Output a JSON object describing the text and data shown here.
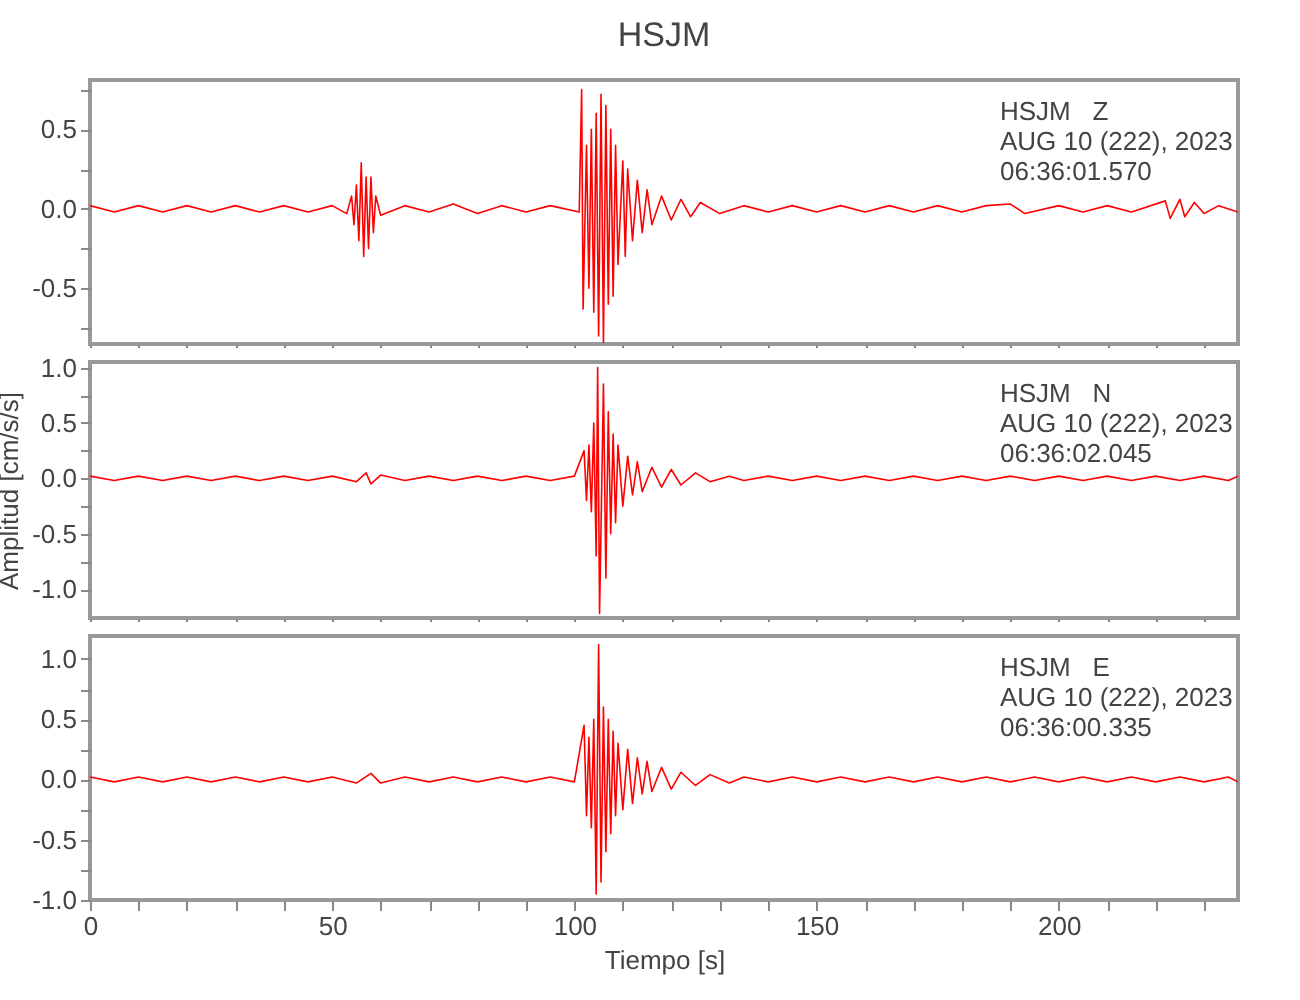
{
  "chart_data": [
    {
      "type": "line",
      "title": "HSJM",
      "tick_labels": "y",
      "annotations": [
        "HSJM   Z",
        "AUG 10 (222), 2023",
        "06:36:01.570"
      ],
      "x": [
        0,
        5,
        10,
        15,
        20,
        25,
        30,
        35,
        40,
        45,
        50,
        53,
        54,
        54.5,
        55,
        55.5,
        56,
        56.5,
        57,
        57.5,
        58,
        58.5,
        59,
        60,
        65,
        70,
        75,
        80,
        85,
        90,
        95,
        101,
        101.5,
        101.8,
        102.5,
        103,
        103.5,
        104,
        104.5,
        105,
        105.5,
        106,
        106.5,
        107,
        107.5,
        108,
        108.5,
        109,
        110,
        110.5,
        111,
        112,
        113,
        114,
        115,
        116,
        118,
        120,
        122,
        124,
        126,
        130,
        135,
        140,
        145,
        150,
        155,
        160,
        165,
        170,
        175,
        180,
        185,
        190,
        193,
        200,
        205,
        210,
        215,
        222,
        223,
        225,
        226,
        228,
        230,
        233,
        237
      ],
      "series": [
        {
          "color": "#ff0000",
          "values": [
            0.02,
            -0.02,
            0.02,
            -0.02,
            0.02,
            -0.02,
            0.02,
            -0.02,
            0.02,
            -0.02,
            0.02,
            -0.03,
            0.08,
            -0.1,
            0.15,
            -0.2,
            0.29,
            -0.3,
            0.2,
            -0.25,
            0.2,
            -0.15,
            0.08,
            -0.04,
            0.02,
            -0.02,
            0.03,
            -0.03,
            0.02,
            -0.02,
            0.02,
            -0.02,
            0.75,
            -0.63,
            0.4,
            -0.5,
            0.5,
            -0.65,
            0.6,
            -0.8,
            0.72,
            -0.84,
            0.65,
            -0.6,
            0.5,
            -0.55,
            0.4,
            -0.35,
            0.3,
            -0.3,
            0.25,
            -0.2,
            0.18,
            -0.15,
            0.12,
            -0.1,
            0.08,
            -0.07,
            0.06,
            -0.05,
            0.04,
            -0.03,
            0.02,
            -0.02,
            0.02,
            -0.02,
            0.02,
            -0.02,
            0.02,
            -0.02,
            0.02,
            -0.02,
            0.02,
            0.03,
            -0.03,
            0.02,
            -0.02,
            0.02,
            -0.02,
            0.05,
            -0.06,
            0.06,
            -0.05,
            0.04,
            -0.03,
            0.02,
            -0.02
          ]
        }
      ],
      "xlim": [
        0,
        237
      ],
      "ylim": [
        -0.85,
        0.81
      ],
      "xticks": [
        0,
        {
          "value": 10,
          "label": null
        },
        {
          "value": 20,
          "label": null
        },
        {
          "value": 30,
          "label": null
        },
        {
          "value": 40,
          "label": null
        },
        50,
        {
          "value": 60,
          "label": null
        },
        {
          "value": 70,
          "label": null
        },
        {
          "value": 80,
          "label": null
        },
        {
          "value": 90,
          "label": null
        },
        100,
        {
          "value": 110,
          "label": null
        },
        {
          "value": 120,
          "label": null
        },
        {
          "value": 130,
          "label": null
        },
        {
          "value": 140,
          "label": null
        },
        150,
        {
          "value": 160,
          "label": null
        },
        {
          "value": 170,
          "label": null
        },
        {
          "value": 180,
          "label": null
        },
        {
          "value": 190,
          "label": null
        },
        200,
        {
          "value": 210,
          "label": null
        },
        {
          "value": 220,
          "label": null
        },
        {
          "value": 230,
          "label": null
        }
      ],
      "yticks": [
        {
          "value": -0.75,
          "label": null
        },
        {
          "value": -0.5,
          "label": "-0.5"
        },
        {
          "value": -0.25,
          "label": null
        },
        {
          "value": 0,
          "label": "0.0"
        },
        {
          "value": 0.25,
          "label": null
        },
        {
          "value": 0.5,
          "label": "0.5"
        },
        {
          "value": 0.75,
          "label": null
        }
      ]
    },
    {
      "type": "line",
      "ylabel": "Amplitud [cm/s/s]",
      "tick_labels": "y",
      "annotations": [
        "HSJM   N",
        "AUG 10 (222), 2023",
        "06:36:02.045"
      ],
      "x": [
        0,
        5,
        10,
        15,
        20,
        25,
        30,
        35,
        40,
        45,
        50,
        55,
        57,
        58,
        60,
        65,
        70,
        75,
        80,
        85,
        90,
        95,
        100,
        102,
        102.5,
        103,
        103.5,
        104,
        104.5,
        104.8,
        105.2,
        106,
        106.5,
        107,
        107.5,
        108,
        108.5,
        109,
        110,
        111,
        112,
        113,
        114,
        116,
        118,
        120,
        122,
        125,
        128,
        132,
        135,
        140,
        145,
        150,
        155,
        160,
        165,
        170,
        175,
        180,
        185,
        190,
        195,
        200,
        205,
        210,
        215,
        220,
        225,
        230,
        235,
        237
      ],
      "series": [
        {
          "color": "#ff0000",
          "values": [
            0.02,
            -0.02,
            0.02,
            -0.02,
            0.02,
            -0.02,
            0.02,
            -0.02,
            0.02,
            -0.02,
            0.02,
            -0.03,
            0.05,
            -0.05,
            0.03,
            -0.02,
            0.02,
            -0.02,
            0.02,
            -0.02,
            0.02,
            -0.02,
            0.02,
            0.25,
            -0.2,
            0.3,
            -0.3,
            0.5,
            -0.7,
            1.0,
            -1.22,
            0.85,
            -0.9,
            0.6,
            -0.5,
            0.4,
            -0.4,
            0.3,
            -0.25,
            0.2,
            -0.15,
            0.15,
            -0.12,
            0.1,
            -0.08,
            0.08,
            -0.06,
            0.05,
            -0.03,
            0.02,
            -0.02,
            0.02,
            -0.02,
            0.02,
            -0.02,
            0.02,
            -0.02,
            0.02,
            -0.02,
            0.02,
            -0.02,
            0.02,
            -0.02,
            0.02,
            -0.02,
            0.02,
            -0.02,
            0.02,
            -0.02,
            0.02,
            -0.02,
            0.02
          ]
        }
      ],
      "xlim": [
        0,
        237
      ],
      "ylim": [
        -1.26,
        1.05
      ],
      "xticks": [
        0,
        {
          "value": 10,
          "label": null
        },
        {
          "value": 20,
          "label": null
        },
        {
          "value": 30,
          "label": null
        },
        {
          "value": 40,
          "label": null
        },
        50,
        {
          "value": 60,
          "label": null
        },
        {
          "value": 70,
          "label": null
        },
        {
          "value": 80,
          "label": null
        },
        {
          "value": 90,
          "label": null
        },
        100,
        {
          "value": 110,
          "label": null
        },
        {
          "value": 120,
          "label": null
        },
        {
          "value": 130,
          "label": null
        },
        {
          "value": 140,
          "label": null
        },
        150,
        {
          "value": 160,
          "label": null
        },
        {
          "value": 170,
          "label": null
        },
        {
          "value": 180,
          "label": null
        },
        {
          "value": 190,
          "label": null
        },
        200,
        {
          "value": 210,
          "label": null
        },
        {
          "value": 220,
          "label": null
        },
        {
          "value": 230,
          "label": null
        }
      ],
      "yticks": [
        {
          "value": -1,
          "label": "-1.0"
        },
        {
          "value": -0.75,
          "label": null
        },
        {
          "value": -0.5,
          "label": "-0.5"
        },
        {
          "value": -0.25,
          "label": null
        },
        {
          "value": 0,
          "label": "0.0"
        },
        {
          "value": 0.25,
          "label": null
        },
        {
          "value": 0.5,
          "label": "0.5"
        },
        {
          "value": 0.75,
          "label": null
        },
        {
          "value": 1,
          "label": "1.0"
        }
      ]
    },
    {
      "type": "line",
      "xlabel": "Tiempo [s]",
      "annotations": [
        "HSJM   E",
        "AUG 10 (222), 2023",
        "06:36:00.335"
      ],
      "x": [
        0,
        5,
        10,
        15,
        20,
        25,
        30,
        35,
        40,
        45,
        50,
        55,
        58,
        60,
        65,
        70,
        75,
        80,
        85,
        90,
        95,
        100,
        102,
        102.5,
        103,
        103.5,
        104,
        104.5,
        105,
        105.5,
        106,
        106.5,
        107,
        107.5,
        108,
        108.5,
        109,
        110,
        111,
        112,
        113,
        114,
        115,
        116,
        118,
        120,
        122,
        125,
        128,
        132,
        135,
        140,
        145,
        150,
        155,
        160,
        165,
        170,
        175,
        180,
        185,
        190,
        195,
        200,
        205,
        210,
        215,
        220,
        225,
        230,
        235,
        237
      ],
      "series": [
        {
          "color": "#ff0000",
          "values": [
            0.02,
            -0.02,
            0.02,
            -0.02,
            0.02,
            -0.02,
            0.02,
            -0.02,
            0.02,
            -0.02,
            0.02,
            -0.03,
            0.05,
            -0.03,
            0.02,
            -0.02,
            0.02,
            -0.02,
            0.02,
            -0.02,
            0.02,
            -0.02,
            0.45,
            -0.3,
            0.35,
            -0.4,
            0.5,
            -0.95,
            1.12,
            -0.85,
            0.6,
            -0.6,
            0.5,
            -0.45,
            0.4,
            -0.3,
            0.3,
            -0.25,
            0.25,
            -0.2,
            0.18,
            -0.12,
            0.15,
            -0.1,
            0.1,
            -0.08,
            0.06,
            -0.05,
            0.04,
            -0.03,
            0.02,
            -0.02,
            0.02,
            -0.02,
            0.02,
            -0.02,
            0.02,
            -0.02,
            0.02,
            -0.02,
            0.02,
            -0.02,
            0.02,
            -0.02,
            0.02,
            -0.02,
            0.02,
            -0.02,
            0.02,
            -0.02,
            0.02,
            -0.02
          ]
        }
      ],
      "xlim": [
        0,
        237
      ],
      "ylim": [
        -1.0,
        1.19
      ],
      "xticks": [
        0,
        {
          "value": 10,
          "label": null
        },
        {
          "value": 20,
          "label": null
        },
        {
          "value": 30,
          "label": null
        },
        {
          "value": 40,
          "label": null
        },
        50,
        {
          "value": 60,
          "label": null
        },
        {
          "value": 70,
          "label": null
        },
        {
          "value": 80,
          "label": null
        },
        {
          "value": 90,
          "label": null
        },
        100,
        {
          "value": 110,
          "label": null
        },
        {
          "value": 120,
          "label": null
        },
        {
          "value": 130,
          "label": null
        },
        {
          "value": 140,
          "label": null
        },
        150,
        {
          "value": 160,
          "label": null
        },
        {
          "value": 170,
          "label": null
        },
        {
          "value": 180,
          "label": null
        },
        {
          "value": 190,
          "label": null
        },
        200,
        {
          "value": 210,
          "label": null
        },
        {
          "value": 220,
          "label": null
        },
        {
          "value": 230,
          "label": null
        }
      ],
      "yticks": [
        {
          "value": -1,
          "label": "-1.0"
        },
        {
          "value": -0.75,
          "label": null
        },
        {
          "value": -0.5,
          "label": "-0.5"
        },
        {
          "value": -0.25,
          "label": null
        },
        {
          "value": 0,
          "label": "0.0"
        },
        {
          "value": 0.25,
          "label": null
        },
        {
          "value": 0.5,
          "label": "0.5"
        },
        {
          "value": 0.75,
          "label": null
        },
        {
          "value": 1,
          "label": "1.0"
        }
      ]
    }
  ]
}
